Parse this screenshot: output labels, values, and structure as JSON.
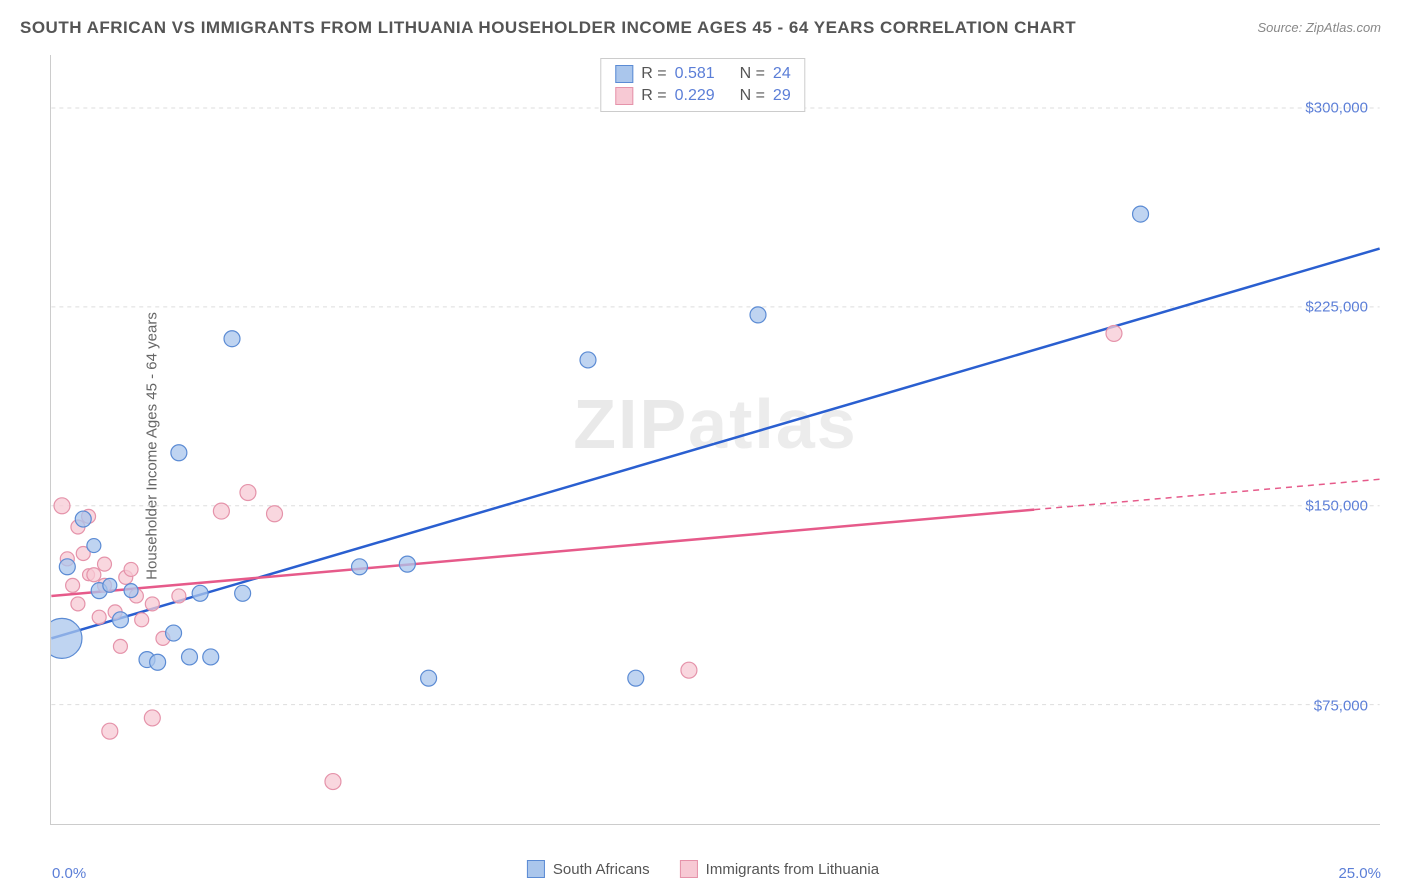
{
  "title": "SOUTH AFRICAN VS IMMIGRANTS FROM LITHUANIA HOUSEHOLDER INCOME AGES 45 - 64 YEARS CORRELATION CHART",
  "source": "Source: ZipAtlas.com",
  "ylabel": "Householder Income Ages 45 - 64 years",
  "watermark_a": "ZIP",
  "watermark_b": "atlas",
  "chart": {
    "type": "scatter",
    "xlim": [
      0.0,
      25.0
    ],
    "ylim": [
      30000,
      320000
    ],
    "x_unit": "%",
    "yticks": [
      75000,
      150000,
      225000,
      300000
    ],
    "ytick_labels": [
      "$75,000",
      "$150,000",
      "$225,000",
      "$300,000"
    ],
    "xtick_min_label": "0.0%",
    "xtick_max_label": "25.0%",
    "background_color": "#ffffff",
    "grid_color": "#dddddd",
    "axis_color": "#cccccc",
    "tick_font_color": "#5b7ed7",
    "label_font_color": "#666666"
  },
  "series": {
    "blue": {
      "label": "South Africans",
      "R": "0.581",
      "N": "24",
      "fill": "#aac6ec",
      "stroke": "#5b8bd4",
      "line_color": "#2a5fd0",
      "trend": {
        "x1": 0.0,
        "y1": 100000,
        "x2": 25.0,
        "y2": 247000,
        "solid_until": 25.0
      },
      "points": [
        {
          "x": 0.2,
          "y": 100000,
          "r": 20
        },
        {
          "x": 0.3,
          "y": 127000,
          "r": 8
        },
        {
          "x": 0.6,
          "y": 145000,
          "r": 8
        },
        {
          "x": 0.8,
          "y": 135000,
          "r": 7
        },
        {
          "x": 0.9,
          "y": 118000,
          "r": 8
        },
        {
          "x": 1.1,
          "y": 120000,
          "r": 7
        },
        {
          "x": 1.3,
          "y": 107000,
          "r": 8
        },
        {
          "x": 1.5,
          "y": 118000,
          "r": 7
        },
        {
          "x": 1.8,
          "y": 92000,
          "r": 8
        },
        {
          "x": 2.0,
          "y": 91000,
          "r": 8
        },
        {
          "x": 2.3,
          "y": 102000,
          "r": 8
        },
        {
          "x": 2.4,
          "y": 170000,
          "r": 8
        },
        {
          "x": 2.6,
          "y": 93000,
          "r": 8
        },
        {
          "x": 2.8,
          "y": 117000,
          "r": 8
        },
        {
          "x": 3.0,
          "y": 93000,
          "r": 8
        },
        {
          "x": 3.4,
          "y": 213000,
          "r": 8
        },
        {
          "x": 3.6,
          "y": 117000,
          "r": 8
        },
        {
          "x": 5.8,
          "y": 127000,
          "r": 8
        },
        {
          "x": 6.7,
          "y": 128000,
          "r": 8
        },
        {
          "x": 7.1,
          "y": 85000,
          "r": 8
        },
        {
          "x": 10.1,
          "y": 205000,
          "r": 8
        },
        {
          "x": 11.0,
          "y": 85000,
          "r": 8
        },
        {
          "x": 13.3,
          "y": 222000,
          "r": 8
        },
        {
          "x": 20.5,
          "y": 260000,
          "r": 8
        }
      ]
    },
    "pink": {
      "label": "Immigrants from Lithuania",
      "R": "0.229",
      "N": "29",
      "fill": "#f7c9d4",
      "stroke": "#e593aa",
      "line_color": "#e65a8a",
      "trend": {
        "x1": 0.0,
        "y1": 116000,
        "x2": 25.0,
        "y2": 160000,
        "solid_until": 18.5
      },
      "points": [
        {
          "x": 0.2,
          "y": 150000,
          "r": 8
        },
        {
          "x": 0.3,
          "y": 130000,
          "r": 7
        },
        {
          "x": 0.4,
          "y": 120000,
          "r": 7
        },
        {
          "x": 0.5,
          "y": 142000,
          "r": 7
        },
        {
          "x": 0.5,
          "y": 113000,
          "r": 7
        },
        {
          "x": 0.6,
          "y": 132000,
          "r": 7
        },
        {
          "x": 0.7,
          "y": 124000,
          "r": 6
        },
        {
          "x": 0.7,
          "y": 146000,
          "r": 7
        },
        {
          "x": 0.8,
          "y": 124000,
          "r": 7
        },
        {
          "x": 0.9,
          "y": 108000,
          "r": 7
        },
        {
          "x": 1.0,
          "y": 120000,
          "r": 7
        },
        {
          "x": 1.0,
          "y": 128000,
          "r": 7
        },
        {
          "x": 1.1,
          "y": 65000,
          "r": 8
        },
        {
          "x": 1.2,
          "y": 110000,
          "r": 7
        },
        {
          "x": 1.3,
          "y": 97000,
          "r": 7
        },
        {
          "x": 1.4,
          "y": 123000,
          "r": 7
        },
        {
          "x": 1.5,
          "y": 126000,
          "r": 7
        },
        {
          "x": 1.6,
          "y": 116000,
          "r": 7
        },
        {
          "x": 1.7,
          "y": 107000,
          "r": 7
        },
        {
          "x": 1.9,
          "y": 113000,
          "r": 7
        },
        {
          "x": 1.9,
          "y": 70000,
          "r": 8
        },
        {
          "x": 2.1,
          "y": 100000,
          "r": 7
        },
        {
          "x": 2.4,
          "y": 116000,
          "r": 7
        },
        {
          "x": 3.2,
          "y": 148000,
          "r": 8
        },
        {
          "x": 3.7,
          "y": 155000,
          "r": 8
        },
        {
          "x": 4.2,
          "y": 147000,
          "r": 8
        },
        {
          "x": 5.3,
          "y": 46000,
          "r": 8
        },
        {
          "x": 12.0,
          "y": 88000,
          "r": 8
        },
        {
          "x": 20.0,
          "y": 215000,
          "r": 8
        }
      ]
    }
  },
  "stats_labels": {
    "R": "R =",
    "N": "N ="
  }
}
